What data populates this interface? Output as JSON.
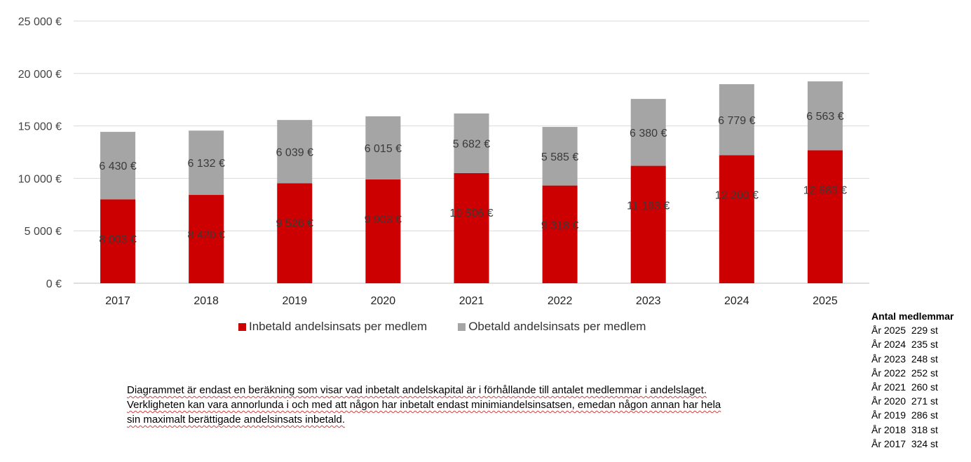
{
  "chart_data": {
    "type": "bar",
    "stacked": true,
    "categories": [
      "2017",
      "2018",
      "2019",
      "2020",
      "2021",
      "2022",
      "2023",
      "2024",
      "2025"
    ],
    "series": [
      {
        "name": "Inbetald andelsinsats per medlem",
        "color": "#cc0000",
        "values": [
          8003,
          8420,
          9526,
          9903,
          10506,
          9318,
          11193,
          12200,
          12683
        ],
        "labels": [
          "8 003 €",
          "8 420 €",
          "9 526 €",
          "9 903 €",
          "10 506 €",
          "9 318 €",
          "11 193 €",
          "12 200 €",
          "12 683 €"
        ]
      },
      {
        "name": "Obetald andelsinsats per medlem",
        "color": "#a5a5a5",
        "values": [
          6430,
          6132,
          6039,
          6015,
          5682,
          5585,
          6380,
          6779,
          6563
        ],
        "labels": [
          "6 430 €",
          "6 132 €",
          "6 039 €",
          "6 015 €",
          "5 682 €",
          "5 585 €",
          "6 380 €",
          "6 779 €",
          "6 563 €"
        ]
      }
    ],
    "y_ticks": [
      "0 €",
      "5 000 €",
      "10 000 €",
      "15 000 €",
      "20 000 €",
      "25 000 €"
    ],
    "ylim": [
      0,
      25000
    ],
    "grid": true,
    "legend_placement": "bottom"
  },
  "note": {
    "lines": [
      "Diagrammet är endast en beräkning som visar vad inbetalt andelskapital är i förhållande till antalet medlemmar i andelslaget.",
      "Verkligheten kan vara annorlunda i och med att någon har inbetalt endast minimiandelsinsatsen, emedan någon annan har hela",
      "sin maximalt berättigade andelsinsats inbetald."
    ]
  },
  "members": {
    "title": "Antal medlemmar",
    "rows": [
      "År 2025  229 st",
      "År 2024  235 st",
      "År 2023  248 st",
      "År 2022  252 st",
      "År 2021  260 st",
      "År 2020  271 st",
      "År 2019  286 st",
      "År 2018  318 st",
      "År 2017  324 st"
    ]
  }
}
